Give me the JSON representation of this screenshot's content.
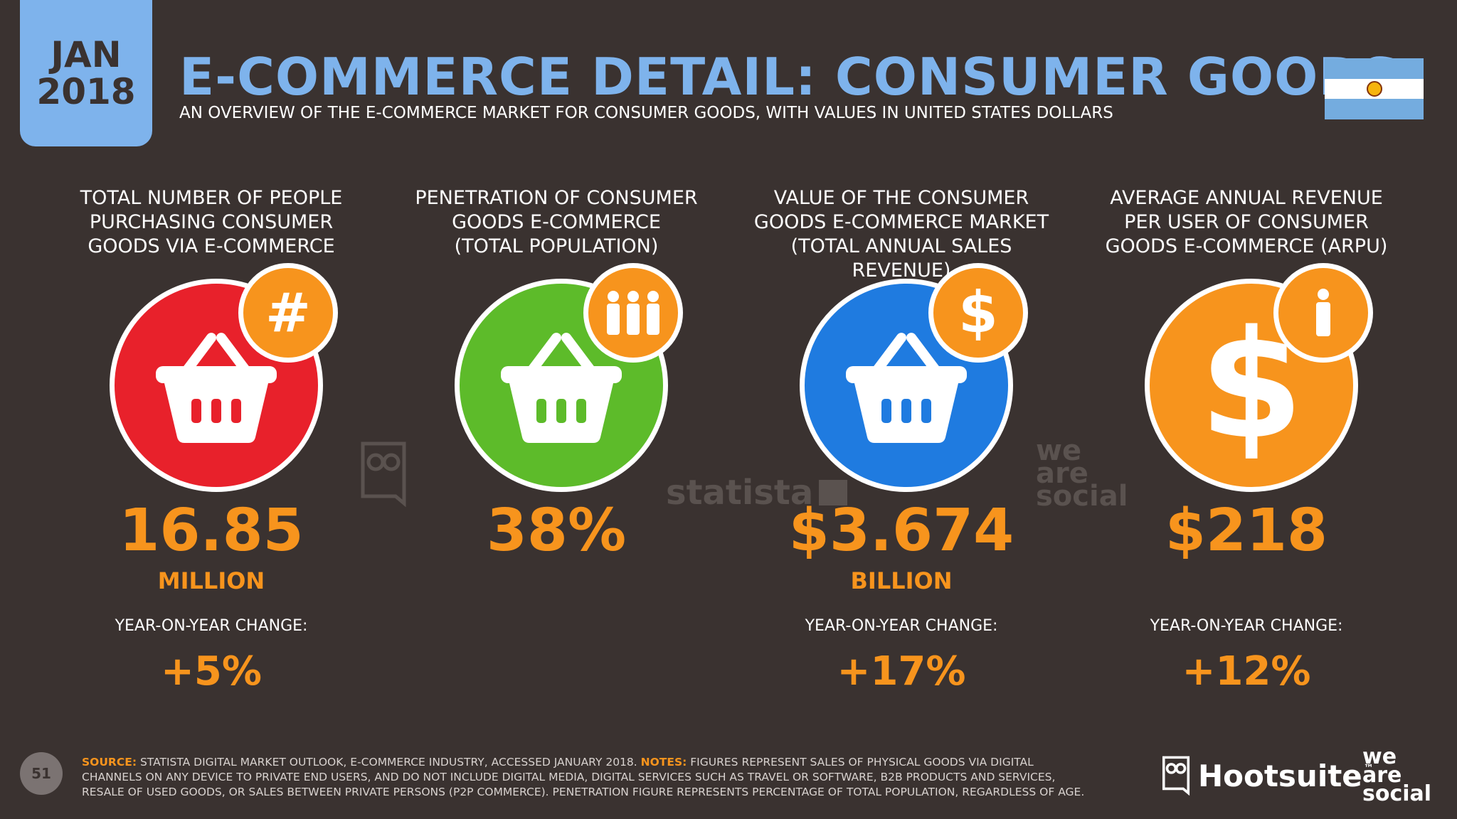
{
  "header": {
    "month": "JAN",
    "year": "2018",
    "title": "E-COMMERCE DETAIL: CONSUMER GOODS",
    "subtitle": "AN OVERVIEW OF THE E-COMMERCE MARKET FOR CONSUMER GOODS, WITH VALUES IN UNITED STATES DOLLARS",
    "flag": "argentina-flag-icon"
  },
  "colors": {
    "background": "#3a3230",
    "accent_blue": "#7eb3ec",
    "accent_orange": "#f7941d",
    "red": "#e8212b",
    "green": "#5dbb2a",
    "blue": "#1f7be0",
    "orange": "#f7941d"
  },
  "stats": [
    {
      "label_lines": [
        "TOTAL NUMBER OF PEOPLE",
        "PURCHASING CONSUMER",
        "GOODS VIA E-COMMERCE"
      ],
      "value": "16.85",
      "unit": "MILLION",
      "yoy_label": "YEAR-ON-YEAR CHANGE:",
      "yoy_value": "+5%",
      "icon": "basket-icon",
      "badge_icon": "hash-icon",
      "circle_color": "#e8212b"
    },
    {
      "label_lines": [
        "PENETRATION OF CONSUMER",
        "GOODS E-COMMERCE",
        "(TOTAL POPULATION)"
      ],
      "value": "38%",
      "unit": "",
      "yoy_label": "",
      "yoy_value": "",
      "icon": "basket-icon",
      "badge_icon": "people-icon",
      "circle_color": "#5dbb2a"
    },
    {
      "label_lines": [
        "VALUE OF THE CONSUMER",
        "GOODS E-COMMERCE MARKET",
        "(TOTAL ANNUAL SALES REVENUE)"
      ],
      "value": "$3.674",
      "unit": "BILLION",
      "yoy_label": "YEAR-ON-YEAR CHANGE:",
      "yoy_value": "+17%",
      "icon": "basket-icon",
      "badge_icon": "dollar-icon",
      "circle_color": "#1f7be0"
    },
    {
      "label_lines": [
        "AVERAGE ANNUAL REVENUE",
        "PER USER OF CONSUMER",
        "GOODS E-COMMERCE (ARPU)"
      ],
      "value": "$218",
      "unit": "",
      "yoy_label": "YEAR-ON-YEAR CHANGE:",
      "yoy_value": "+12%",
      "icon": "dollar-icon",
      "badge_icon": "person-icon",
      "circle_color": "#f7941d"
    }
  ],
  "watermarks": {
    "statista": "statista",
    "was_1": "we",
    "was_2": "are",
    "was_3": "social"
  },
  "footer": {
    "page_number": "51",
    "source_label": "SOURCE:",
    "source_text": "STATISTA DIGITAL MARKET OUTLOOK, E-COMMERCE INDUSTRY, ACCESSED JANUARY 2018.",
    "notes_label": "NOTES:",
    "notes_text": "FIGURES REPRESENT SALES OF PHYSICAL GOODS VIA DIGITAL CHANNELS ON ANY DEVICE TO PRIVATE END USERS, AND DO NOT INCLUDE DIGITAL MEDIA, DIGITAL SERVICES SUCH AS TRAVEL OR SOFTWARE, B2B PRODUCTS AND SERVICES, RESALE OF USED GOODS, OR SALES BETWEEN PRIVATE PERSONS (P2P COMMERCE). PENETRATION FIGURE REPRESENTS PERCENTAGE OF TOTAL POPULATION, REGARDLESS OF AGE.",
    "brand_hootsuite": "Hootsuite",
    "brand_tm": "™",
    "brand_was_1": "we",
    "brand_was_2": "are",
    "brand_was_3": "social"
  }
}
